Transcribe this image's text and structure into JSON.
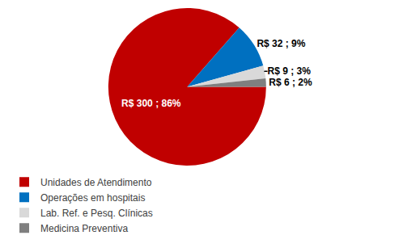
{
  "chart_data": {
    "type": "pie",
    "categories": [
      "Unidades de Atendimento",
      "Operações em hospitais",
      "Lab. Ref. e Pesq. Clínicas",
      "Medicina Preventiva"
    ],
    "values": [
      300,
      32,
      9,
      6
    ],
    "value_labels": [
      "R$ 300 ; 86%",
      "R$ 32 ; 9%",
      "R$ 9 ; 3%",
      "R$ 6 ; 2%"
    ],
    "colors": [
      "#c00000",
      "#0070c0",
      "#d9d9d9",
      "#7f7f7f"
    ],
    "data_labels": true,
    "legend": "bottom"
  }
}
